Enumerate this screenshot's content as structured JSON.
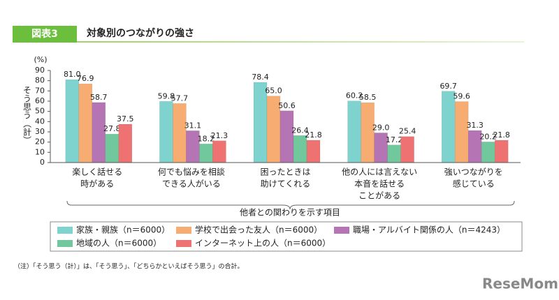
{
  "chart_data": {
    "type": "bar",
    "badge": "図表3",
    "title": "対象別のつながりの強さ",
    "y_label": "そう思う（計）",
    "y_unit": "(%)",
    "x_label": "他者との関わりを示す項目",
    "categories": [
      [
        "楽しく話せる",
        "時がある"
      ],
      [
        "何でも悩みを相談",
        "できる人がいる"
      ],
      [
        "困ったときは",
        "助けてくれる"
      ],
      [
        "他の人には言えない",
        "本音を話せる",
        "ことがある"
      ],
      [
        "強いつながりを",
        "感じている"
      ]
    ],
    "series": [
      {
        "name": "家族・親族（n＝6000）",
        "color": "#7fd3cf",
        "values": [
          81.0,
          59.8,
          78.4,
          60.2,
          69.7
        ],
        "value_labels": [
          "81.0",
          "59.8",
          "78.4",
          "60.2",
          "69.7"
        ]
      },
      {
        "name": "学校で出会った友人（n＝6000）",
        "color": "#f7ac72",
        "values": [
          76.9,
          57.7,
          65.0,
          58.5,
          59.6
        ],
        "value_labels": [
          "76.9",
          "57.7",
          "65.0",
          "58.5",
          "59.6"
        ]
      },
      {
        "name": "職場・アルバイト関係の人（n＝4243）",
        "color": "#b574b3",
        "values": [
          58.7,
          31.1,
          50.6,
          29.0,
          31.3
        ],
        "value_labels": [
          "58.7",
          "31.1",
          "50.6",
          "29.0",
          "31.3"
        ]
      },
      {
        "name": "地域の人（n＝6000）",
        "color": "#72c89d",
        "values": [
          27.8,
          18.2,
          26.4,
          17.2,
          20.2
        ],
        "value_labels": [
          "27.8",
          "18.2",
          "26.4",
          "17.2",
          "20.2"
        ]
      },
      {
        "name": "インターネット上の人（n＝6000）",
        "color": "#ee7272",
        "values": [
          37.5,
          21.3,
          21.8,
          25.4,
          21.8
        ],
        "value_labels": [
          "37.5",
          "21.3",
          "21.8",
          "25.4",
          "21.8"
        ]
      }
    ],
    "ylim": [
      0,
      90
    ],
    "yticks": [
      0,
      10,
      20,
      30,
      40,
      50,
      60,
      70,
      80,
      90
    ],
    "note": "（注）「そう思う（計）」は、「そう思う」、「どちらかといえばそう思う」の合計。",
    "logo": "ReseMom"
  }
}
